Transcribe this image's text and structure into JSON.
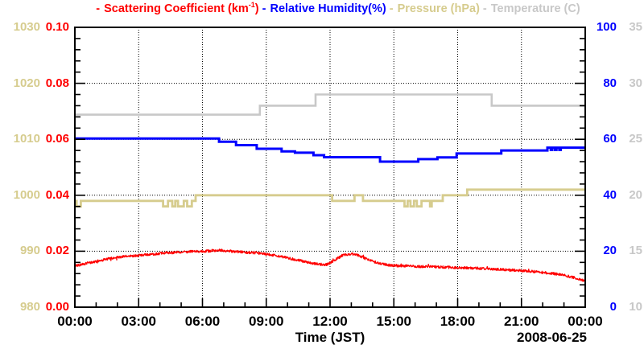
{
  "legend": {
    "items": [
      {
        "dash": "-",
        "color": "#ff0000",
        "parts": {
          "pre": "Scattering Coefficient (km",
          "sup": "-1",
          "post": ")"
        }
      },
      {
        "dash": "-",
        "color": "#0000ff",
        "label": "Relative Humidity(%)"
      },
      {
        "dash": "-",
        "color": "#d6cc8e",
        "label": "Pressure (hPa)"
      },
      {
        "dash": "-",
        "color": "#c8c8c8",
        "parts": {
          "pre": "Temperature (",
          "deg": "°",
          "c": "C",
          "post": ")"
        }
      }
    ]
  },
  "chart_data": {
    "type": "line",
    "title": "",
    "x_axis": {
      "label": "Time (JST)",
      "date": "2008-06-25",
      "range_hours": [
        0,
        24
      ],
      "tick_hours": [
        0,
        3,
        6,
        9,
        12,
        15,
        18,
        21,
        24
      ],
      "tick_labels": [
        "00:00",
        "03:00",
        "06:00",
        "09:00",
        "12:00",
        "15:00",
        "18:00",
        "21:00",
        "00:00"
      ],
      "minor_tick_every_hours": 1,
      "grid": "dotted"
    },
    "y_axes": [
      {
        "id": "pressure",
        "label": "Pressure (hPa)",
        "side": "far-left",
        "color": "#d6cc8e",
        "range": [
          980,
          1030
        ],
        "ticks": [
          "980",
          "990",
          "1000",
          "1010",
          "1020",
          "1030"
        ]
      },
      {
        "id": "scattering",
        "label": "Scattering Coefficient (km-1)",
        "side": "left",
        "color": "#ff0000",
        "range": [
          0,
          0.1
        ],
        "ticks": [
          "0.00",
          "0.02",
          "0.04",
          "0.06",
          "0.08",
          "0.10"
        ],
        "minor_per_major": 5
      },
      {
        "id": "humidity",
        "label": "Relative Humidity(%)",
        "side": "right",
        "color": "#0000ff",
        "range": [
          0,
          100
        ],
        "ticks": [
          "0",
          "20",
          "40",
          "60",
          "80",
          "100"
        ],
        "minor_per_major": 5
      },
      {
        "id": "temperature",
        "label": "Temperature (C)",
        "side": "far-right",
        "color": "#c8c8c8",
        "range": [
          10,
          35
        ],
        "ticks": [
          "10",
          "15",
          "20",
          "25",
          "30",
          "35"
        ]
      }
    ],
    "grid_color": "#000000",
    "series": [
      {
        "name": "Temperature (C)",
        "axis": "temperature",
        "style": "step",
        "color": "#c8c8c8",
        "width": 2.6,
        "points": [
          [
            0,
            27.2
          ],
          [
            8.7,
            28.0
          ],
          [
            11.32,
            29.0
          ],
          [
            19.6,
            28.0
          ]
        ]
      },
      {
        "name": "Pressure (hPa)",
        "axis": "pressure",
        "style": "step",
        "color": "#d6cc8e",
        "width": 2.8,
        "points": [
          [
            0,
            999
          ],
          [
            0.08,
            998
          ],
          [
            0.28,
            999
          ],
          [
            4.15,
            998
          ],
          [
            4.38,
            999
          ],
          [
            4.58,
            998
          ],
          [
            4.72,
            999
          ],
          [
            4.85,
            998
          ],
          [
            5.12,
            999
          ],
          [
            5.28,
            998
          ],
          [
            5.5,
            999
          ],
          [
            5.68,
            1000
          ],
          [
            12.1,
            999
          ],
          [
            13.15,
            1000
          ],
          [
            13.55,
            999
          ],
          [
            15.5,
            998
          ],
          [
            15.65,
            999
          ],
          [
            15.78,
            998
          ],
          [
            15.95,
            999
          ],
          [
            16.08,
            998
          ],
          [
            16.3,
            999
          ],
          [
            16.7,
            998
          ],
          [
            16.78,
            999
          ],
          [
            17.3,
            1000
          ],
          [
            18.45,
            1001
          ]
        ]
      },
      {
        "name": "Relative Humidity(%)",
        "axis": "humidity",
        "style": "step",
        "color": "#0000ff",
        "width": 3,
        "points": [
          [
            0,
            60.3
          ],
          [
            6.78,
            59.1
          ],
          [
            7.58,
            57.9
          ],
          [
            8.55,
            56.6
          ],
          [
            9.72,
            55.7
          ],
          [
            10.35,
            55.2
          ],
          [
            11.22,
            54.3
          ],
          [
            11.72,
            53.6
          ],
          [
            14.35,
            52.0
          ],
          [
            16.15,
            52.9
          ],
          [
            17.05,
            53.5
          ],
          [
            17.95,
            54.9
          ],
          [
            20.05,
            56.0
          ],
          [
            22.22,
            57.0
          ],
          [
            22.38,
            56.2
          ],
          [
            22.45,
            57.0
          ],
          [
            22.58,
            56.2
          ],
          [
            22.65,
            57.0
          ],
          [
            22.78,
            56.2
          ],
          [
            22.85,
            57.0
          ]
        ]
      },
      {
        "name": "Scattering Coefficient (km-1)",
        "axis": "scattering",
        "style": "noisy-line",
        "color": "#ff0000",
        "width": 1.3,
        "noise_amplitude": 0.00045,
        "sample_step_hours": 0.016,
        "keypoints": [
          [
            0,
            0.0148
          ],
          [
            0.5,
            0.0156
          ],
          [
            1,
            0.0163
          ],
          [
            1.5,
            0.0172
          ],
          [
            2,
            0.0178
          ],
          [
            2.5,
            0.0182
          ],
          [
            3,
            0.0185
          ],
          [
            3.5,
            0.0188
          ],
          [
            4,
            0.0192
          ],
          [
            4.5,
            0.0195
          ],
          [
            5,
            0.0197
          ],
          [
            5.5,
            0.0199
          ],
          [
            6,
            0.02
          ],
          [
            6.5,
            0.0202
          ],
          [
            6.8,
            0.0204
          ],
          [
            7,
            0.0202
          ],
          [
            7.5,
            0.0199
          ],
          [
            8,
            0.0196
          ],
          [
            8.5,
            0.0194
          ],
          [
            9,
            0.019
          ],
          [
            9.5,
            0.0184
          ],
          [
            10,
            0.0176
          ],
          [
            10.5,
            0.0168
          ],
          [
            11,
            0.0159
          ],
          [
            11.5,
            0.0153
          ],
          [
            11.8,
            0.0152
          ],
          [
            12,
            0.0158
          ],
          [
            12.3,
            0.0172
          ],
          [
            12.6,
            0.0186
          ],
          [
            13,
            0.019
          ],
          [
            13.3,
            0.0186
          ],
          [
            13.6,
            0.0176
          ],
          [
            14,
            0.0164
          ],
          [
            14.4,
            0.0155
          ],
          [
            14.8,
            0.015
          ],
          [
            15.2,
            0.0148
          ],
          [
            16,
            0.0146
          ],
          [
            17,
            0.0144
          ],
          [
            18,
            0.0141
          ],
          [
            19,
            0.0139
          ],
          [
            20,
            0.0135
          ],
          [
            21,
            0.013
          ],
          [
            21.5,
            0.0128
          ],
          [
            22,
            0.0124
          ],
          [
            22.5,
            0.012
          ],
          [
            23,
            0.0114
          ],
          [
            23.5,
            0.0105
          ],
          [
            24,
            0.0094
          ]
        ]
      }
    ]
  }
}
